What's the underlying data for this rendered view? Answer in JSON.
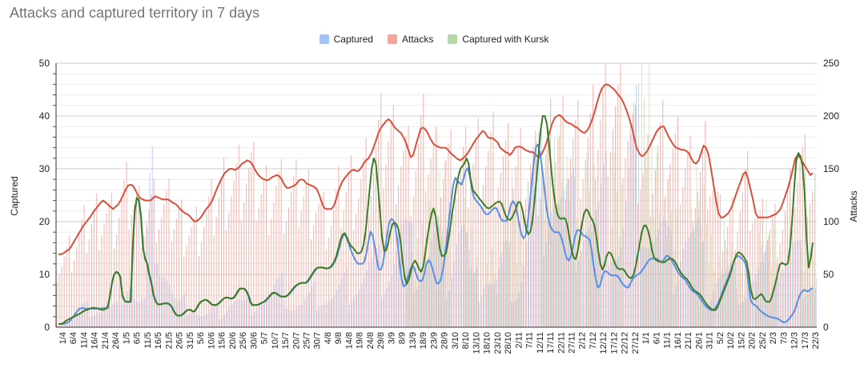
{
  "chart_data": {
    "type": "bar+line",
    "title": "Attacks and captured territory in 7 days",
    "legend": {
      "placement": "top-center",
      "items": [
        {
          "name": "Captured",
          "color": "#a4c2f4"
        },
        {
          "name": "Attacks",
          "color": "#f4a69c"
        },
        {
          "name": "Captured with Kursk",
          "color": "#b6d7a8"
        }
      ]
    },
    "ylabel_left": "Captured",
    "ylabel_right": "Attacks",
    "ylim_left": [
      0,
      50
    ],
    "ylim_right": [
      0,
      250
    ],
    "yticks_left": [
      "0",
      "10",
      "20",
      "30",
      "40",
      "50"
    ],
    "yticks_right": [
      "0",
      "50",
      "100",
      "150",
      "200",
      "250"
    ],
    "series_colors": {
      "captured_line": "#5b8ee6",
      "attacks_line": "#d94f3d",
      "kursk_line": "#3a7d22",
      "captured_bar": "#a4c2f4",
      "attacks_bar": "#f4a69c",
      "kursk_bar": "#b6d7a8"
    },
    "x_tick_labels": [
      "1/4",
      "6/4",
      "11/4",
      "16/4",
      "21/4",
      "26/4",
      "1/5",
      "6/5",
      "11/5",
      "16/5",
      "21/5",
      "26/5",
      "31/5",
      "5/6",
      "10/6",
      "15/6",
      "20/6",
      "25/6",
      "30/6",
      "5/7",
      "10/7",
      "15/7",
      "20/7",
      "25/7",
      "30/7",
      "4/8",
      "9/8",
      "14/8",
      "19/8",
      "24/8",
      "29/8",
      "3/9",
      "8/9",
      "13/9",
      "18/9",
      "23/9",
      "28/9",
      "3/10",
      "8/10",
      "13/10",
      "18/10",
      "23/10",
      "28/10",
      "2/11",
      "7/11",
      "12/11",
      "17/11",
      "22/11",
      "27/11",
      "2/12",
      "7/12",
      "12/12",
      "17/12",
      "22/12",
      "27/12",
      "1/1",
      "6/1",
      "11/1",
      "16/1",
      "21/1",
      "26/1",
      "31/1",
      "5/2",
      "10/2",
      "15/2",
      "20/2",
      "25/2",
      "2/3",
      "7/3",
      "12/3",
      "17/3",
      "22/3"
    ],
    "attacks_7day": [
      69,
      69,
      70,
      72,
      73,
      76,
      80,
      84,
      88,
      92,
      96,
      99,
      102,
      105,
      109,
      112,
      115,
      118,
      120,
      118,
      116,
      114,
      112,
      114,
      116,
      120,
      125,
      130,
      134,
      135,
      134,
      130,
      125,
      122,
      121,
      120,
      120,
      120,
      122,
      124,
      123,
      122,
      121,
      121,
      121,
      120,
      118,
      117,
      115,
      112,
      110,
      108,
      107,
      105,
      102,
      100,
      101,
      103,
      106,
      110,
      113,
      116,
      120,
      126,
      132,
      137,
      142,
      146,
      148,
      150,
      150,
      149,
      150,
      152,
      155,
      156,
      158,
      157,
      155,
      150,
      146,
      143,
      141,
      140,
      139,
      140,
      142,
      143,
      144,
      143,
      140,
      135,
      132,
      132,
      133,
      134,
      136,
      139,
      140,
      139,
      136,
      135,
      134,
      133,
      131,
      126,
      119,
      113,
      112,
      112,
      112,
      115,
      122,
      130,
      136,
      140,
      143,
      146,
      148,
      149,
      148,
      148,
      151,
      155,
      158,
      160,
      164,
      170,
      177,
      184,
      189,
      192,
      195,
      197,
      195,
      191,
      188,
      186,
      184,
      180,
      175,
      168,
      161,
      163,
      172,
      180,
      188,
      189,
      187,
      183,
      178,
      174,
      172,
      171,
      170,
      170,
      170,
      168,
      165,
      163,
      161,
      159,
      158,
      160,
      162,
      165,
      169,
      173,
      177,
      180,
      183,
      186,
      184,
      180,
      179,
      179,
      177,
      175,
      170,
      168,
      166,
      165,
      163,
      166,
      170,
      171,
      171,
      170,
      168,
      167,
      166,
      166,
      164,
      162,
      161,
      165,
      170,
      177,
      185,
      193,
      198,
      200,
      201,
      199,
      196,
      194,
      193,
      192,
      190,
      189,
      187,
      185,
      184,
      186,
      190,
      196,
      203,
      212,
      220,
      226,
      229,
      230,
      229,
      227,
      225,
      222,
      219,
      216,
      211,
      205,
      198,
      190,
      180,
      170,
      165,
      162,
      163,
      166,
      170,
      175,
      180,
      185,
      188,
      190,
      190,
      185,
      180,
      176,
      172,
      170,
      169,
      168,
      168,
      167,
      165,
      160,
      156,
      155,
      158,
      165,
      172,
      170,
      163,
      150,
      135,
      120,
      108,
      104,
      104,
      106,
      108,
      112,
      118,
      125,
      132,
      138,
      145,
      147,
      140,
      130,
      120,
      108,
      104,
      104,
      104,
      104,
      104,
      105,
      106,
      107,
      109,
      112,
      118,
      125,
      132,
      140,
      150,
      160,
      163,
      160,
      156,
      152,
      148,
      144,
      146
    ],
    "captured_7day": [
      0.6,
      0.6,
      0.6,
      0.7,
      0.8,
      1,
      1.4,
      1.9,
      2.5,
      3,
      3.5,
      3.6,
      3.6,
      3.5,
      3.5,
      3.5,
      3.5,
      3.5,
      3.5,
      3.5,
      3.5,
      3.6,
      3.6,
      3.6,
      3.6,
      6,
      8.5,
      10,
      10.5,
      10.3,
      9.5,
      6,
      5,
      4.8,
      4.8,
      4.8,
      15,
      22,
      24.5,
      24,
      21,
      15,
      13,
      12,
      10,
      8.5,
      6.2,
      5,
      4.4,
      4.3,
      4.4,
      4.5,
      4.5,
      4.5,
      4.3,
      3.8,
      3,
      2.4,
      2.2,
      2.2,
      2.4,
      2.7,
      3.1,
      3.3,
      3.3,
      3,
      3,
      3.6,
      4.3,
      4.8,
      5,
      5.2,
      5.1,
      4.8,
      4.4,
      4.2,
      4.2,
      4.3,
      4.6,
      5,
      5.4,
      5.6,
      5.6,
      5.5,
      5.4,
      5.6,
      6.1,
      6.8,
      7.3,
      7.3,
      7.3,
      6.9,
      6.1,
      4.8,
      4.2,
      4.2,
      4.2,
      4.3,
      4.5,
      4.7,
      4.9,
      5.3,
      5.7,
      6.2,
      6.5,
      6.5,
      6.3,
      6,
      5.8,
      5.8,
      5.8,
      6,
      6.4,
      6.9,
      7.4,
      7.8,
      8.1,
      8.3,
      8.4,
      8.4,
      8.4,
      8.8,
      9.4,
      10,
      10.6,
      11.1,
      11.3,
      11.3,
      11.3,
      11.2,
      11.1,
      11.2,
      11.4,
      11.9,
      12.6,
      13.7,
      15.2,
      16.7,
      17.6,
      17.3,
      16.3,
      15.2,
      14.1,
      13.2,
      12.5,
      12,
      12,
      12,
      12.4,
      14,
      16.2,
      18.1,
      17.5,
      15.3,
      13,
      11,
      10.9,
      12,
      14.7,
      17.5,
      19.7,
      20.5,
      20.3,
      19,
      16.3,
      12.5,
      9.2,
      7.7,
      8,
      9.4,
      10.7,
      11.6,
      11.4,
      10.1,
      9.1,
      8.7,
      8.8,
      10.1,
      11.9,
      12.7,
      12.3,
      11.1,
      9.6,
      8.3,
      8.3,
      9,
      10.8,
      13.4,
      16.8,
      20.5,
      23.8,
      26.8,
      28.3,
      27.9,
      27.3,
      27,
      28,
      29.6,
      30.1,
      28.7,
      26.3,
      24.6,
      24,
      23.6,
      23.1,
      22.5,
      21.8,
      21.4,
      21.4,
      21.8,
      22.3,
      22.6,
      22.5,
      21.6,
      20.6,
      20.1,
      20.1,
      20.2,
      21.7,
      23.3,
      23.9,
      23.2,
      21.6,
      19.5,
      17.6,
      16.8,
      17.3,
      19.6,
      23.2,
      27.3,
      31.2,
      34.1,
      34.6,
      33,
      30.3,
      26.8,
      23.1,
      20.6,
      19.1,
      18.4,
      18,
      18,
      18,
      17.4,
      16.1,
      14.4,
      13,
      12.6,
      13.5,
      15.2,
      17.2,
      18.4,
      18.4,
      17.9,
      17.4,
      17.2,
      17,
      16.6,
      14.5,
      11.6,
      9.2,
      7.5,
      7.8,
      9.4,
      10.5,
      10.6,
      10.3,
      9.9,
      9.8,
      9.8,
      9.8,
      9.5,
      8.8,
      8.2,
      7.8,
      7.5,
      7.6,
      8.5,
      9.2,
      9.6,
      9.9,
      10.1,
      10.5,
      11.1,
      11.7,
      12.3,
      12.8,
      13,
      13,
      13,
      12.9,
      12.5,
      12.3,
      12.8,
      13.5,
      13.5,
      13.1,
      12.5,
      11.8,
      11,
      10.3,
      9.8,
      9.4,
      9.1,
      8.5,
      7.8,
      7.2,
      6.8,
      6.6,
      6.3,
      5.8,
      5.2,
      4.6,
      4.1,
      3.7,
      3.4,
      3.2,
      3.3,
      3.7,
      4.4,
      5.3,
      6.3,
      7.4,
      8.4,
      9.3,
      10.5,
      11.5,
      12.6,
      13.3,
      13.5,
      13.3,
      12.8,
      12.4,
      11.3,
      7.7,
      5.1,
      4.4,
      4.2,
      3.9,
      3.4,
      3,
      2.7,
      2.4,
      2.2,
      2,
      1.9,
      1.8,
      1.7,
      1.6,
      1.4,
      1.1,
      0.9,
      1,
      1.3,
      1.8,
      2.3,
      3,
      4,
      5.3,
      6.3,
      6.8,
      7.1,
      6.8,
      6.8,
      7.2,
      7.4
    ],
    "kursk_7day": [
      0.6,
      0.6,
      0.7,
      1,
      1.3,
      1.5,
      1.7,
      1.9,
      2.1,
      2.3,
      2.5,
      2.7,
      3,
      3.2,
      3.3,
      3.5,
      3.6,
      3.7,
      3.6,
      3.6,
      3.4,
      3.3,
      3.3,
      3.5,
      4,
      6,
      8.5,
      10,
      10.5,
      10.3,
      9.5,
      6,
      5,
      4.8,
      4.8,
      4.8,
      15,
      22,
      24.5,
      24,
      21,
      15,
      13,
      12,
      10,
      8.5,
      6.2,
      5,
      4.4,
      4.3,
      4.4,
      4.5,
      4.5,
      4.5,
      4.3,
      3.8,
      3,
      2.4,
      2.2,
      2.2,
      2.4,
      2.7,
      3.1,
      3.3,
      3.3,
      3,
      3,
      3.6,
      4.3,
      4.8,
      5,
      5.2,
      5.1,
      4.8,
      4.4,
      4.2,
      4.2,
      4.3,
      4.6,
      5,
      5.4,
      5.6,
      5.6,
      5.5,
      5.4,
      5.6,
      6.1,
      6.8,
      7.3,
      7.3,
      7.3,
      6.9,
      6.1,
      4.8,
      4.2,
      4.2,
      4.2,
      4.3,
      4.5,
      4.7,
      4.9,
      5.3,
      5.7,
      6.2,
      6.5,
      6.5,
      6.3,
      6,
      5.8,
      5.8,
      5.8,
      6,
      6.4,
      6.9,
      7.4,
      7.8,
      8.1,
      8.3,
      8.4,
      8.4,
      8.4,
      8.8,
      9.4,
      10,
      10.6,
      11.1,
      11.3,
      11.3,
      11.3,
      11.2,
      11.1,
      11.2,
      11.4,
      11.9,
      12.6,
      13.7,
      15.2,
      16.7,
      17.6,
      17.8,
      17,
      16,
      15.4,
      15,
      14.5,
      14,
      14,
      14.3,
      15.5,
      18,
      22,
      26,
      30,
      32,
      31,
      27,
      22,
      17,
      14.5,
      14.5,
      16,
      18,
      19.5,
      19.8,
      19.5,
      18.5,
      16.3,
      12.5,
      9.5,
      8.2,
      9,
      10.5,
      12,
      12.6,
      12,
      11,
      10.5,
      11.5,
      14,
      17,
      19.5,
      21.5,
      22.5,
      21,
      18,
      15,
      13.5,
      13.5,
      14,
      16,
      18.5,
      21.5,
      24,
      26.5,
      28.5,
      30,
      30.5,
      31,
      32,
      31,
      28,
      26,
      25.5,
      25,
      24.5,
      24,
      23.5,
      23,
      22.6,
      22.5,
      22.8,
      23.1,
      23.5,
      23.7,
      23.8,
      23.4,
      22.3,
      21.2,
      20.5,
      20.3,
      20.7,
      21.5,
      22.5,
      23.7,
      23.7,
      22.5,
      20.4,
      18.5,
      17.6,
      18.1,
      20.3,
      24,
      28.2,
      33,
      37.5,
      40,
      40,
      38.5,
      35,
      30.5,
      26.5,
      23.5,
      21.5,
      20.7,
      20.5,
      20.7,
      20.5,
      19.2,
      16.9,
      14.6,
      13.2,
      12.9,
      14.5,
      17,
      19.5,
      21.5,
      22.3,
      22,
      21,
      20.3,
      19.4,
      17.2,
      14.2,
      11.9,
      10.9,
      11.8,
      13.5,
      14.2,
      14,
      13.2,
      12.1,
      11.3,
      11,
      11,
      11,
      10.5,
      9.8,
      9.4,
      9.3,
      9.9,
      11.4,
      13.5,
      15.7,
      17.9,
      19.2,
      19.3,
      18.4,
      16.8,
      14.6,
      13.2,
      12.7,
      12.5,
      12.4,
      12.3,
      12.3,
      12.6,
      12.9,
      13,
      12.9,
      12.5,
      11.8,
      11,
      10.3,
      9.8,
      9.4,
      9.1,
      8.5,
      7.8,
      7.2,
      6.8,
      6.6,
      6.3,
      5.8,
      5.2,
      4.6,
      4.1,
      3.7,
      3.4,
      3.2,
      3.3,
      4,
      5,
      6,
      7,
      8,
      9,
      10,
      11.5,
      12.8,
      13.8,
      14.2,
      14,
      13.6,
      13,
      12.3,
      10,
      7,
      5.5,
      5.3,
      5.6,
      6,
      6.3,
      5.8,
      5,
      4.8,
      4.8,
      5.5,
      7,
      8.5,
      10.2,
      11.8,
      12.2,
      12,
      11.8,
      12.2,
      15.2,
      20.3,
      26.3,
      31.5,
      33,
      32.4,
      30.7,
      25.8,
      16.7,
      11.3,
      13,
      16
    ]
  }
}
